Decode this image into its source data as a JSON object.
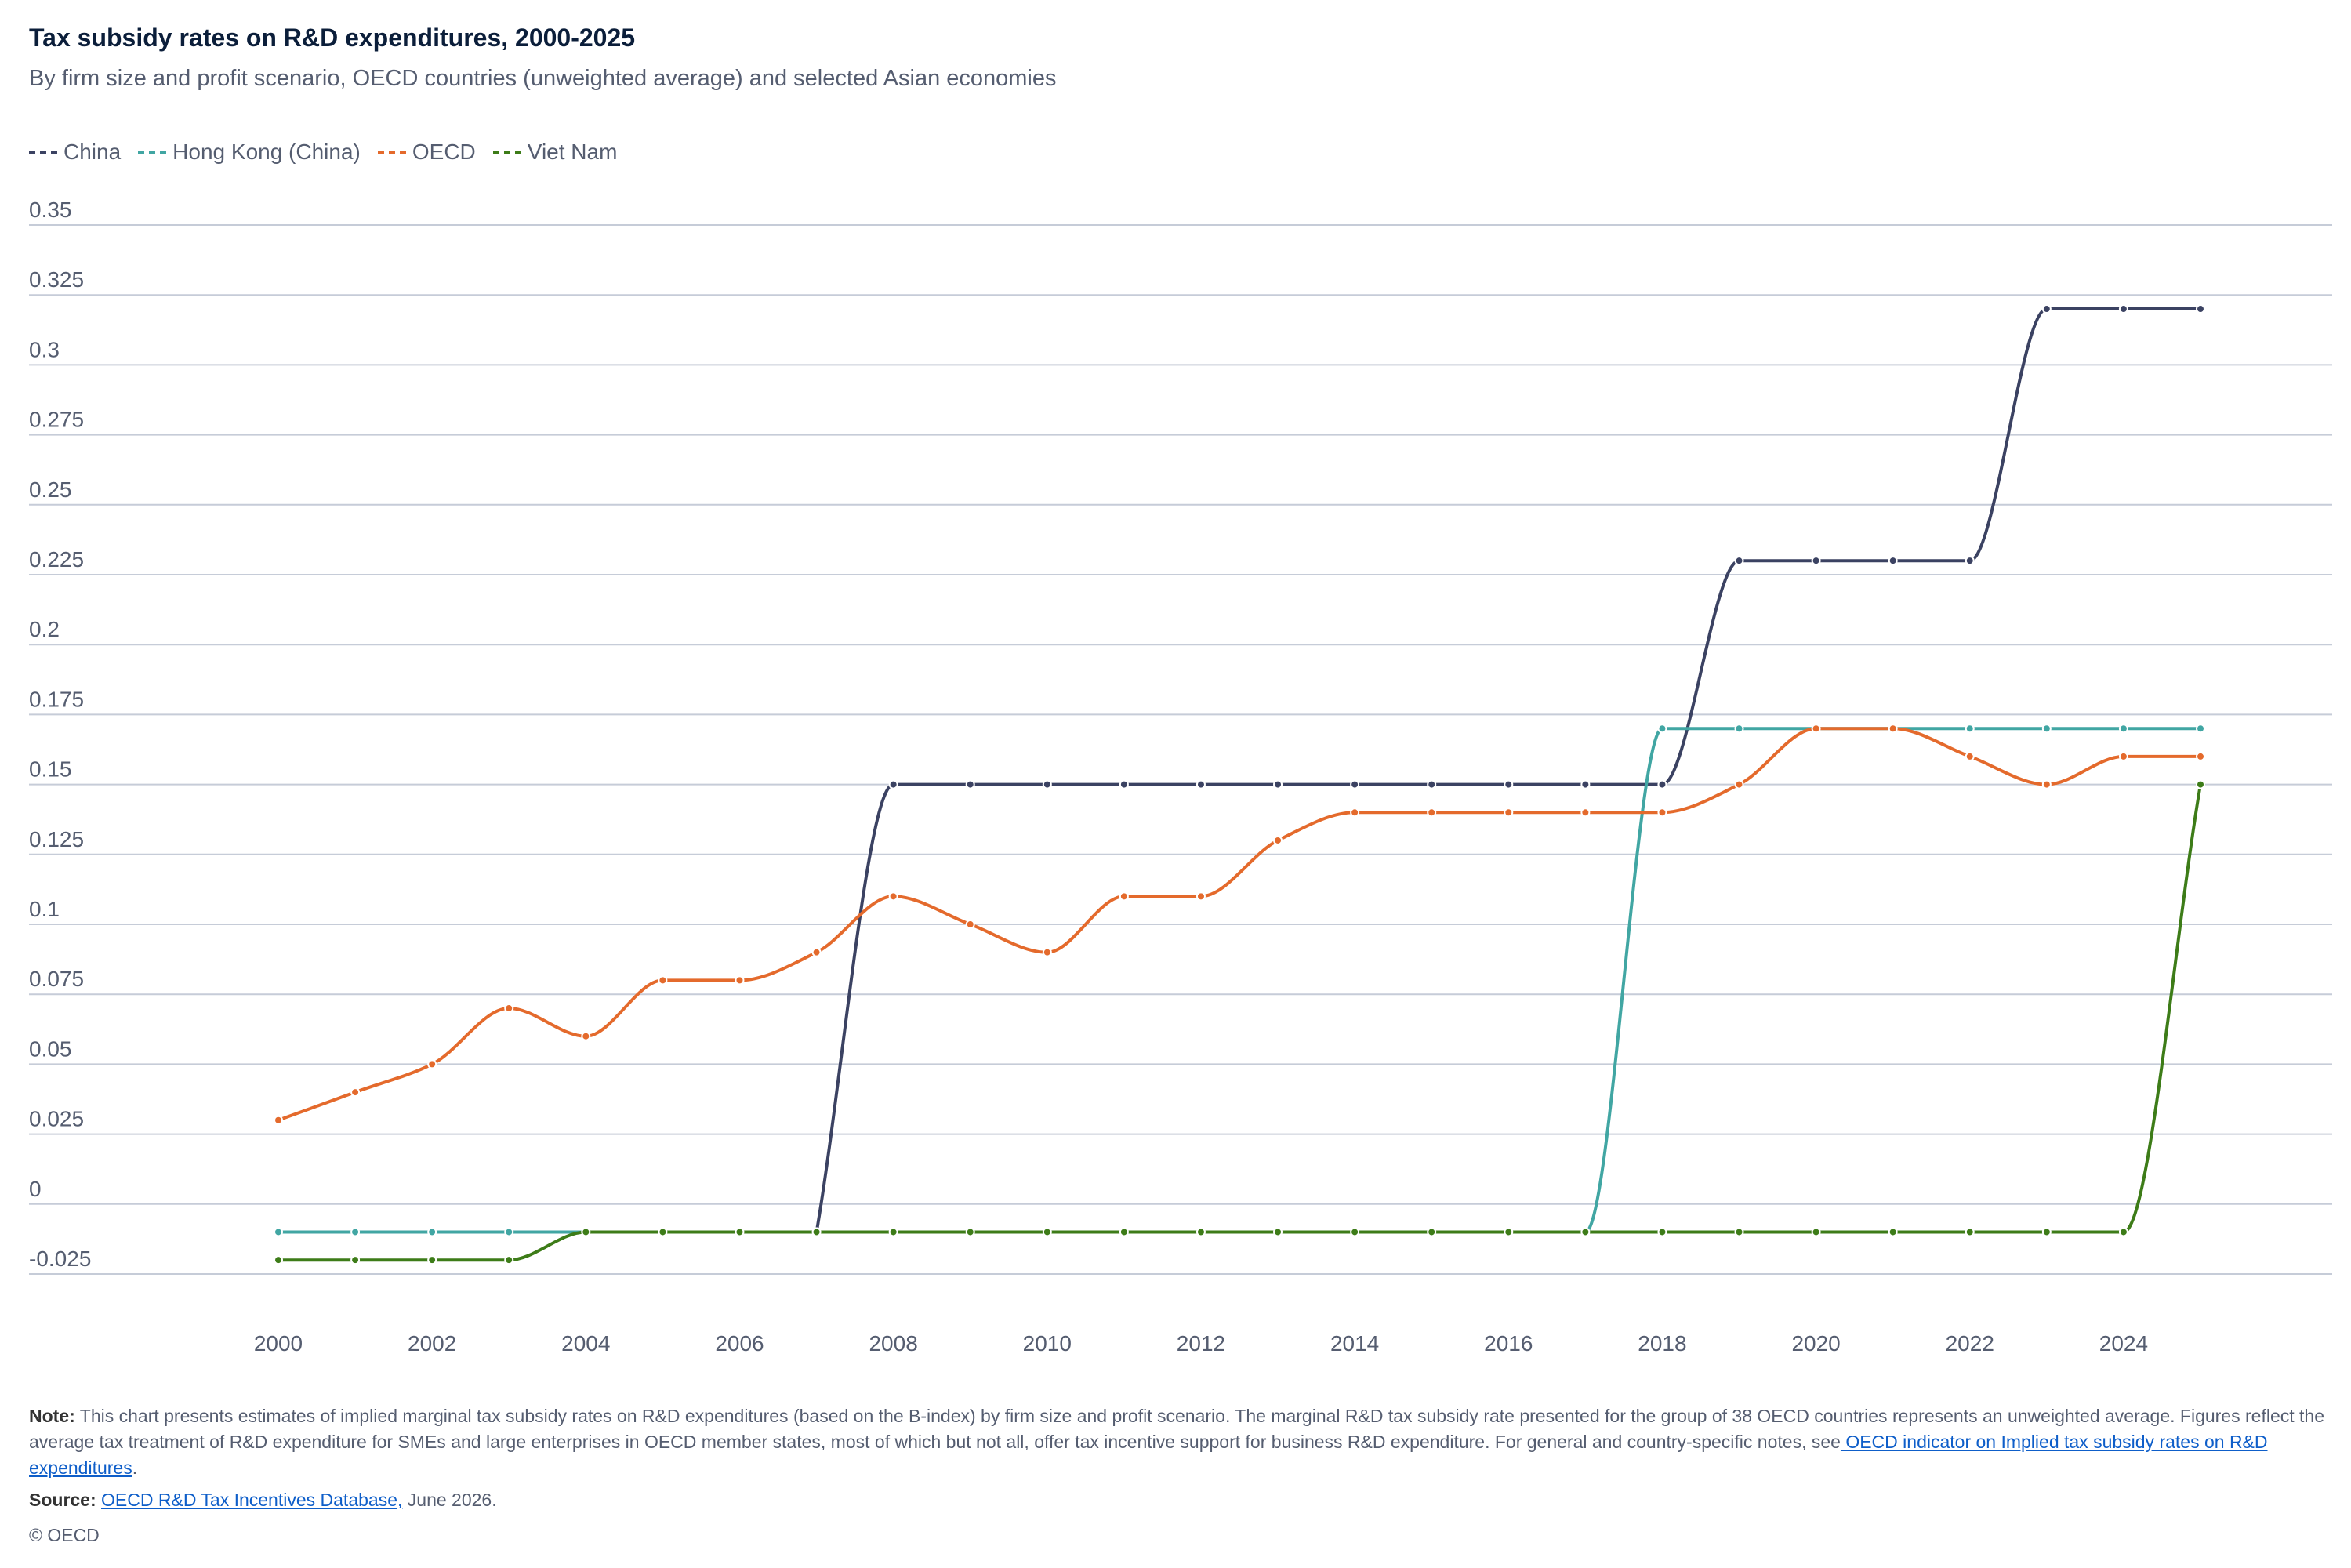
{
  "title": "Tax subsidy rates on R&D expenditures, 2000-2025",
  "subtitle": "By firm size and profit scenario, OECD countries (unweighted average) and selected Asian economies",
  "note": {
    "label": "Note:",
    "text": "This chart presents estimates of implied marginal tax subsidy rates on R&D expenditures (based on the B-index) by firm size and profit scenario. The marginal R&D tax subsidy rate presented for the group of 38 OECD countries represents an unweighted average. Figures reflect the average tax treatment of R&D expenditure for SMEs and large enterprises in OECD member states, most of which but not all, offer tax incentive support for business R&D expenditure. For general and country-specific notes, see",
    "link": " OECD indicator on Implied tax subsidy rates on R&D expenditures",
    "end": "."
  },
  "source": {
    "label": "Source:",
    "link": "OECD R&D Tax Incentives Database,",
    "text": " June 2026."
  },
  "copyright": "© OECD",
  "chart_data": {
    "type": "line",
    "title": "Tax subsidy rates on R&D expenditures, 2000-2025",
    "xlabel": "",
    "ylabel": "",
    "ylim": [
      -0.025,
      0.35
    ],
    "y_ticks": [
      -0.025,
      0,
      0.025,
      0.05,
      0.075,
      0.1,
      0.125,
      0.15,
      0.175,
      0.2,
      0.225,
      0.25,
      0.275,
      0.3,
      0.325,
      0.35
    ],
    "y_tick_labels": [
      "-0.025",
      "0",
      "0.025",
      "0.05",
      "0.075",
      "0.1",
      "0.125",
      "0.15",
      "0.175",
      "0.2",
      "0.225",
      "0.25",
      "0.275",
      "0.3",
      "0.325",
      "0.35"
    ],
    "x_ticks": [
      2000,
      2002,
      2004,
      2006,
      2008,
      2010,
      2012,
      2014,
      2016,
      2018,
      2020,
      2022,
      2024
    ],
    "x": [
      2000,
      2001,
      2002,
      2003,
      2004,
      2005,
      2006,
      2007,
      2008,
      2009,
      2010,
      2011,
      2012,
      2013,
      2014,
      2015,
      2016,
      2017,
      2018,
      2019,
      2020,
      2021,
      2022,
      2023,
      2024,
      2025
    ],
    "grid": true,
    "legend_position": "top-left",
    "series": [
      {
        "name": "China",
        "color": "#3b4262",
        "values": [
          null,
          null,
          null,
          null,
          null,
          null,
          null,
          -0.01,
          0.15,
          0.15,
          0.15,
          0.15,
          0.15,
          0.15,
          0.15,
          0.15,
          0.15,
          0.15,
          0.15,
          0.23,
          0.23,
          0.23,
          0.23,
          0.32,
          0.32,
          0.32
        ]
      },
      {
        "name": "Hong Kong (China)",
        "color": "#41a6a3",
        "values": [
          -0.01,
          -0.01,
          -0.01,
          -0.01,
          -0.01,
          -0.01,
          -0.01,
          -0.01,
          -0.01,
          -0.01,
          -0.01,
          -0.01,
          -0.01,
          -0.01,
          -0.01,
          -0.01,
          -0.01,
          -0.01,
          0.17,
          0.17,
          0.17,
          0.17,
          0.17,
          0.17,
          0.17,
          0.17
        ]
      },
      {
        "name": "OECD",
        "color": "#e46a2c",
        "values": [
          0.03,
          0.04,
          0.05,
          0.07,
          0.06,
          0.08,
          0.08,
          0.09,
          0.11,
          0.1,
          0.09,
          0.11,
          0.11,
          0.13,
          0.14,
          0.14,
          0.14,
          0.14,
          0.14,
          0.15,
          0.17,
          0.17,
          0.16,
          0.15,
          0.16,
          0.16
        ]
      },
      {
        "name": "Viet Nam",
        "color": "#3d7c18",
        "values": [
          -0.02,
          -0.02,
          -0.02,
          -0.02,
          -0.01,
          -0.01,
          -0.01,
          -0.01,
          -0.01,
          -0.01,
          -0.01,
          -0.01,
          -0.01,
          -0.01,
          -0.01,
          -0.01,
          -0.01,
          -0.01,
          -0.01,
          -0.01,
          -0.01,
          -0.01,
          -0.01,
          -0.01,
          -0.01,
          0.15
        ]
      }
    ]
  }
}
